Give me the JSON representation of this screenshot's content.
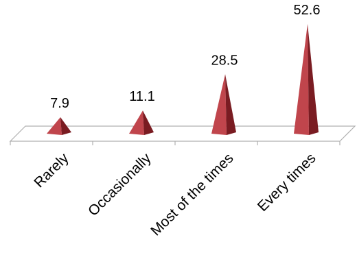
{
  "chart_data": {
    "type": "bar",
    "style": "3d-pyramid",
    "categories": [
      "Rarely",
      "Occasionally",
      "Most of the times",
      "Every times"
    ],
    "values": [
      7.9,
      11.1,
      28.5,
      52.6
    ],
    "data_labels": [
      "7.9",
      "11.1",
      "28.5",
      "52.6"
    ],
    "title": "",
    "xlabel": "",
    "ylabel": "",
    "ylim": [
      0,
      55
    ],
    "grid": false,
    "legend": "none",
    "colors": {
      "pyramid_light": "#c0454c",
      "pyramid_dark": "#7a1c22",
      "axis": "#b0b0b0"
    }
  }
}
